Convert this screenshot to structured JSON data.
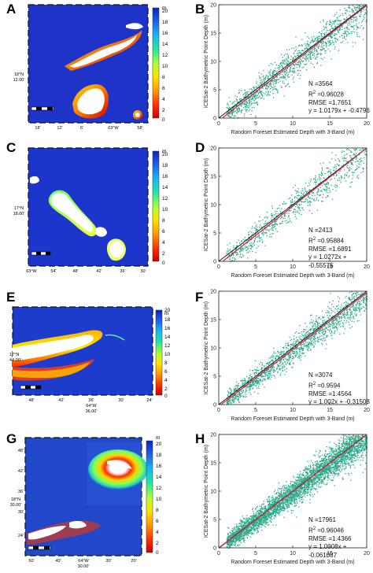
{
  "figure": {
    "panel_labels": [
      "A",
      "B",
      "C",
      "D",
      "E",
      "F",
      "G",
      "H"
    ]
  },
  "maps": [
    {
      "label": "A",
      "colorbar_unit": "m",
      "colorbar_ticks": [
        "20",
        "18",
        "16",
        "14",
        "12",
        "10",
        "8",
        "6",
        "4",
        "2",
        "0"
      ],
      "lat_label": [
        "18°N",
        "12.00'"
      ],
      "lon_ticks": [
        "18'",
        "12'",
        "6'",
        "63°W",
        "58'"
      ],
      "left_ticks": [
        "",
        "",
        "",
        ""
      ]
    },
    {
      "label": "C",
      "colorbar_unit": "m",
      "colorbar_ticks": [
        "20",
        "18",
        "16",
        "14",
        "12",
        "10",
        "8",
        "6",
        "4",
        "2",
        "0"
      ],
      "lat_label": [
        "17°N",
        "18.00'"
      ],
      "lon_ticks": [
        "63°W",
        "54'",
        "48'",
        "42'",
        "36'",
        "30'"
      ],
      "left_ticks": [
        "",
        "",
        "",
        ""
      ]
    },
    {
      "label": "E",
      "colorbar_unit": "m",
      "colorbar_ticks": [
        "20",
        "18",
        "16",
        "14",
        "12",
        "10",
        "8",
        "6",
        "4",
        "2",
        "0"
      ],
      "lat_label": [
        "17°N",
        "44.00'"
      ],
      "lon_ticks": [
        "48'",
        "42'",
        "36'",
        "30'",
        "24'"
      ],
      "lon_center": [
        "64°W",
        "36.00'"
      ],
      "left_ticks": [
        "",
        "",
        "",
        ""
      ]
    },
    {
      "label": "G",
      "colorbar_unit": "m",
      "colorbar_ticks": [
        "20",
        "18",
        "16",
        "14",
        "12",
        "10",
        "8",
        "6",
        "4",
        "2",
        "0"
      ],
      "lat_label": [
        "18°N",
        "30.00'"
      ],
      "lon_ticks": [
        "50'",
        "40'",
        "30'",
        "20'"
      ],
      "lon_center": [
        "64°W",
        "30.00'"
      ],
      "left_ticks": [
        "48'",
        "42'",
        "36'",
        "30'",
        "24'"
      ]
    }
  ],
  "chart_data": [
    {
      "label": "B",
      "type": "scatter",
      "xlabel": "Random Foreset Estimated Depth with 3-Band (m)",
      "ylabel": "ICESat-2 Bathymetric Point Depth (m)",
      "xlim": [
        0,
        20
      ],
      "ylim": [
        0,
        20
      ],
      "xticks": [
        0,
        5,
        10,
        15,
        20
      ],
      "yticks": [
        0,
        5,
        10,
        15,
        20
      ],
      "N": "N =3564",
      "R2_prefix": "R",
      "R2_value": " =0.96028",
      "RMSE": "RMSE =1.7651",
      "equation": "y = 1.0179x + -0.4796",
      "fit": {
        "slope": 1.0179,
        "intercept": -0.4796
      },
      "point_color": "#2aa88a",
      "fit_color": "#e02030",
      "identity_color": "#111111"
    },
    {
      "label": "D",
      "type": "scatter",
      "xlabel": "Random Foreset Estimated Depth with 3-Band (m)",
      "ylabel": "ICESat-2 Bathymetric Point Depth (m)",
      "xlim": [
        0,
        20
      ],
      "ylim": [
        0,
        20
      ],
      "xticks": [
        0,
        5,
        10,
        15,
        20
      ],
      "yticks": [
        0,
        5,
        10,
        15,
        20
      ],
      "N": "N =2413",
      "R2_prefix": "R",
      "R2_value": " =0.95884",
      "RMSE": "RMSE =1.6891",
      "equation": "y = 1.0272x + -0.55575",
      "fit": {
        "slope": 1.0272,
        "intercept": -0.55575
      },
      "point_color": "#2aa88a",
      "fit_color": "#e02030",
      "identity_color": "#111111"
    },
    {
      "label": "F",
      "type": "scatter",
      "xlabel": "Random Foreset Estimated Depth with 3-Band (m)",
      "ylabel": "ICESat-2 Bathymetric Point Depth (m)",
      "xlim": [
        0,
        20
      ],
      "ylim": [
        0,
        20
      ],
      "xticks": [
        0,
        5,
        10,
        15,
        20
      ],
      "yticks": [
        0,
        5,
        10,
        15,
        20
      ],
      "N": "N =3074",
      "R2_prefix": "R",
      "R2_value": " =0.9594",
      "RMSE": "RMSE =1.4564",
      "equation": "y = 1.002x + -0.31508",
      "fit": {
        "slope": 1.002,
        "intercept": -0.31508
      },
      "point_color": "#2aa88a",
      "fit_color": "#e02030",
      "identity_color": "#111111"
    },
    {
      "label": "H",
      "type": "scatter",
      "xlabel": "Random Foreset Estimated Depth with 3-Band (m)",
      "ylabel": "ICESat-2 Bathymetric Point Depth (m)",
      "xlim": [
        0,
        20
      ],
      "ylim": [
        0,
        20
      ],
      "xticks": [
        0,
        5,
        10,
        15,
        20
      ],
      "yticks": [
        0,
        5,
        10,
        15,
        20
      ],
      "N": "N =17961",
      "R2_prefix": "R",
      "R2_value": " =0.96046",
      "RMSE": "RMSE =1.4366",
      "equation": "y = 1.0008x + -0.061087",
      "fit": {
        "slope": 1.0008,
        "intercept": -0.061087
      },
      "point_color": "#2aa88a",
      "fit_color": "#e02030",
      "identity_color": "#111111"
    }
  ]
}
